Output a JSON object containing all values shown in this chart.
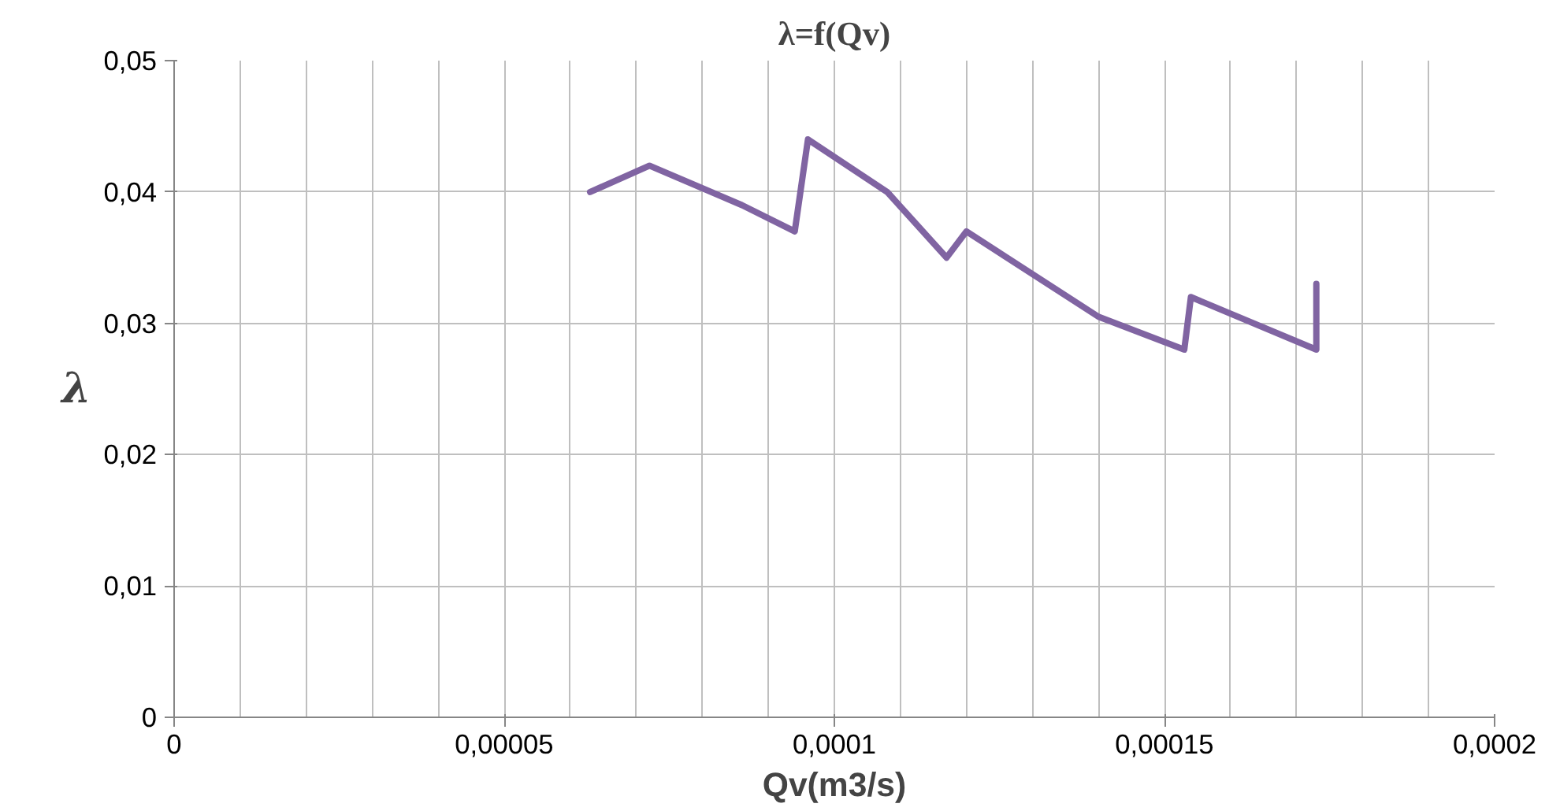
{
  "chart_data": {
    "type": "line",
    "title": "λ=f(Qv)",
    "xlabel": "Qv(m3/s)",
    "ylabel": "λ",
    "x": [
      6.3e-05,
      7.2e-05,
      8.6e-05,
      9.4e-05,
      9.6e-05,
      0.000108,
      0.000117,
      0.00012,
      0.00014,
      0.000153,
      0.000154,
      0.000173,
      0.000173
    ],
    "series": [
      {
        "color": "#8064a2",
        "values": [
          0.04,
          0.042,
          0.039,
          0.037,
          0.044,
          0.04,
          0.035,
          0.037,
          0.0305,
          0.028,
          0.032,
          0.028,
          0.033
        ]
      }
    ],
    "xlim": [
      0,
      0.0002
    ],
    "xticks": [
      {
        "value": 0,
        "label": "0"
      },
      {
        "value": 5e-05,
        "label": "0,00005"
      },
      {
        "value": 0.0001,
        "label": "0,0001"
      },
      {
        "value": 0.00015,
        "label": "0,00015"
      },
      {
        "value": 0.0002,
        "label": "0,0002"
      }
    ],
    "ylim": [
      0,
      0.05
    ],
    "yticks": [
      {
        "value": 0,
        "label": "0"
      },
      {
        "value": 0.01,
        "label": "0,01"
      },
      {
        "value": 0.02,
        "label": "0,02"
      },
      {
        "value": 0.03,
        "label": "0,03"
      },
      {
        "value": 0.04,
        "label": "0,04"
      },
      {
        "value": 0.05,
        "label": "0,05"
      }
    ],
    "grid": true,
    "marker": "none",
    "line_style": "solid"
  }
}
